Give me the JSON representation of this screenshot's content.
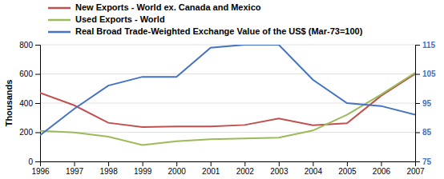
{
  "chart_data": {
    "type": "line",
    "x": [
      1996,
      1997,
      1998,
      1999,
      2000,
      2001,
      2002,
      2003,
      2004,
      2005,
      2006,
      2007
    ],
    "xlim": [
      1996,
      2007
    ],
    "xticks": [
      1996,
      1997,
      1998,
      1999,
      2000,
      2001,
      2002,
      2003,
      2004,
      2005,
      2006,
      2007
    ],
    "y_label": "Thousands",
    "ylim": [
      0,
      800
    ],
    "yticks": [
      0,
      200,
      400,
      600,
      800
    ],
    "y2lim": [
      75,
      115
    ],
    "y2ticks": [
      75,
      85,
      95,
      105,
      115
    ],
    "grid": true,
    "legend": "top",
    "series": [
      {
        "name": "New Exports - World ex. Canada and Mexico",
        "color": "#c0504d",
        "values": [
          470,
          385,
          265,
          235,
          240,
          240,
          250,
          295,
          248,
          262,
          450,
          600
        ]
      },
      {
        "name": "Used Exports - World",
        "color": "#9bbb59",
        "values": [
          210,
          198,
          170,
          112,
          138,
          152,
          158,
          163,
          212,
          320,
          458,
          608
        ]
      },
      {
        "name": "Real Broad Trade-Weighted Exchange Value of the US$ (Mar-73=100)",
        "color": "#4472c4",
        "axis": "y2",
        "values": [
          84,
          93,
          101,
          104,
          104,
          114,
          115,
          115,
          103,
          95,
          94,
          91
        ]
      }
    ]
  }
}
